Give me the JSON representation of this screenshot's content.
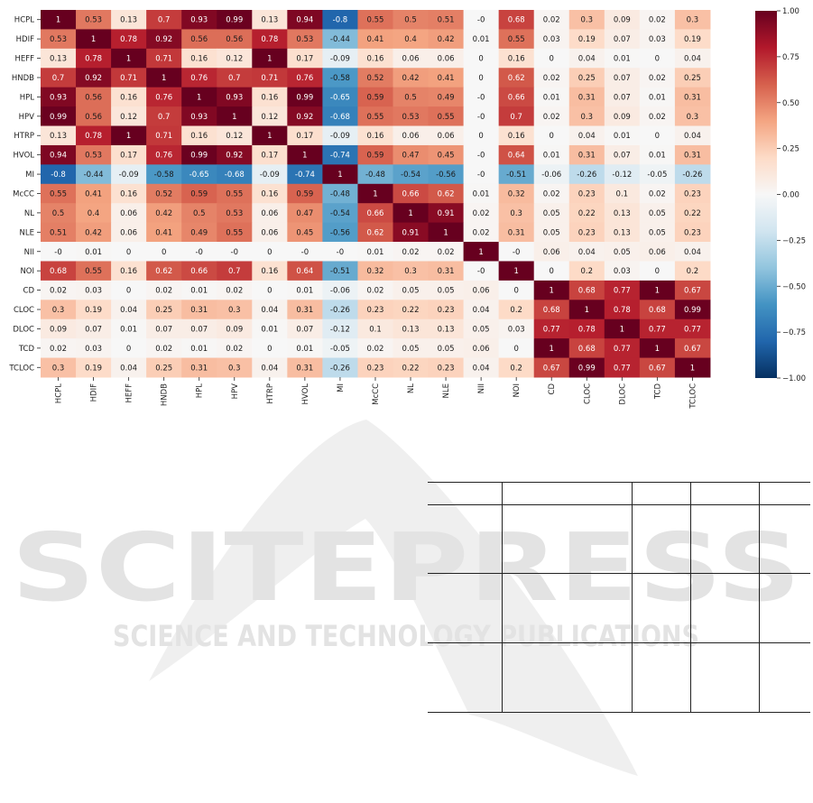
{
  "chart_data": {
    "type": "heatmap",
    "rows": [
      "HCPL",
      "HDIF",
      "HEFF",
      "HNDB",
      "HPL",
      "HPV",
      "HTRP",
      "HVOL",
      "MI",
      "McCC",
      "NL",
      "NLE",
      "NII",
      "NOI",
      "CD",
      "CLOC",
      "DLOC",
      "TCD",
      "TCLOC"
    ],
    "columns": [
      "HCPL",
      "HDIF",
      "HEFF",
      "HNDB",
      "HPL",
      "HPV",
      "HTRP",
      "HVOL",
      "MI",
      "McCC",
      "NL",
      "NLE",
      "NII",
      "NOI",
      "CD",
      "CLOC",
      "DLOC",
      "TCD",
      "TCLOC"
    ],
    "values": [
      [
        "1",
        "0.53",
        "0.13",
        "0.7",
        "0.93",
        "0.99",
        "0.13",
        "0.94",
        "-0.8",
        "0.55",
        "0.5",
        "0.51",
        "-0",
        "0.68",
        "0.02",
        "0.3",
        "0.09",
        "0.02",
        "0.3"
      ],
      [
        "0.53",
        "1",
        "0.78",
        "0.92",
        "0.56",
        "0.56",
        "0.78",
        "0.53",
        "-0.44",
        "0.41",
        "0.4",
        "0.42",
        "0.01",
        "0.55",
        "0.03",
        "0.19",
        "0.07",
        "0.03",
        "0.19"
      ],
      [
        "0.13",
        "0.78",
        "1",
        "0.71",
        "0.16",
        "0.12",
        "1",
        "0.17",
        "-0.09",
        "0.16",
        "0.06",
        "0.06",
        "0",
        "0.16",
        "0",
        "0.04",
        "0.01",
        "0",
        "0.04"
      ],
      [
        "0.7",
        "0.92",
        "0.71",
        "1",
        "0.76",
        "0.7",
        "0.71",
        "0.76",
        "-0.58",
        "0.52",
        "0.42",
        "0.41",
        "0",
        "0.62",
        "0.02",
        "0.25",
        "0.07",
        "0.02",
        "0.25"
      ],
      [
        "0.93",
        "0.56",
        "0.16",
        "0.76",
        "1",
        "0.93",
        "0.16",
        "0.99",
        "-0.65",
        "0.59",
        "0.5",
        "0.49",
        "-0",
        "0.66",
        "0.01",
        "0.31",
        "0.07",
        "0.01",
        "0.31"
      ],
      [
        "0.99",
        "0.56",
        "0.12",
        "0.7",
        "0.93",
        "1",
        "0.12",
        "0.92",
        "-0.68",
        "0.55",
        "0.53",
        "0.55",
        "-0",
        "0.7",
        "0.02",
        "0.3",
        "0.09",
        "0.02",
        "0.3"
      ],
      [
        "0.13",
        "0.78",
        "1",
        "0.71",
        "0.16",
        "0.12",
        "1",
        "0.17",
        "-0.09",
        "0.16",
        "0.06",
        "0.06",
        "0",
        "0.16",
        "0",
        "0.04",
        "0.01",
        "0",
        "0.04"
      ],
      [
        "0.94",
        "0.53",
        "0.17",
        "0.76",
        "0.99",
        "0.92",
        "0.17",
        "1",
        "-0.74",
        "0.59",
        "0.47",
        "0.45",
        "-0",
        "0.64",
        "0.01",
        "0.31",
        "0.07",
        "0.01",
        "0.31"
      ],
      [
        "-0.8",
        "-0.44",
        "-0.09",
        "-0.58",
        "-0.65",
        "-0.68",
        "-0.09",
        "-0.74",
        "1",
        "-0.48",
        "-0.54",
        "-0.56",
        "-0",
        "-0.51",
        "-0.06",
        "-0.26",
        "-0.12",
        "-0.05",
        "-0.26"
      ],
      [
        "0.55",
        "0.41",
        "0.16",
        "0.52",
        "0.59",
        "0.55",
        "0.16",
        "0.59",
        "-0.48",
        "1",
        "0.66",
        "0.62",
        "0.01",
        "0.32",
        "0.02",
        "0.23",
        "0.1",
        "0.02",
        "0.23"
      ],
      [
        "0.5",
        "0.4",
        "0.06",
        "0.42",
        "0.5",
        "0.53",
        "0.06",
        "0.47",
        "-0.54",
        "0.66",
        "1",
        "0.91",
        "0.02",
        "0.3",
        "0.05",
        "0.22",
        "0.13",
        "0.05",
        "0.22"
      ],
      [
        "0.51",
        "0.42",
        "0.06",
        "0.41",
        "0.49",
        "0.55",
        "0.06",
        "0.45",
        "-0.56",
        "0.62",
        "0.91",
        "1",
        "0.02",
        "0.31",
        "0.05",
        "0.23",
        "0.13",
        "0.05",
        "0.23"
      ],
      [
        "-0",
        "0.01",
        "0",
        "0",
        "-0",
        "-0",
        "0",
        "-0",
        "-0",
        "0.01",
        "0.02",
        "0.02",
        "1",
        "-0",
        "0.06",
        "0.04",
        "0.05",
        "0.06",
        "0.04"
      ],
      [
        "0.68",
        "0.55",
        "0.16",
        "0.62",
        "0.66",
        "0.7",
        "0.16",
        "0.64",
        "-0.51",
        "0.32",
        "0.3",
        "0.31",
        "-0",
        "1",
        "0",
        "0.2",
        "0.03",
        "0",
        "0.2"
      ],
      [
        "0.02",
        "0.03",
        "0",
        "0.02",
        "0.01",
        "0.02",
        "0",
        "0.01",
        "-0.06",
        "0.02",
        "0.05",
        "0.05",
        "0.06",
        "0",
        "1",
        "0.68",
        "0.77",
        "1",
        "0.67"
      ],
      [
        "0.3",
        "0.19",
        "0.04",
        "0.25",
        "0.31",
        "0.3",
        "0.04",
        "0.31",
        "-0.26",
        "0.23",
        "0.22",
        "0.23",
        "0.04",
        "0.2",
        "0.68",
        "1",
        "0.78",
        "0.68",
        "0.99"
      ],
      [
        "0.09",
        "0.07",
        "0.01",
        "0.07",
        "0.07",
        "0.09",
        "0.01",
        "0.07",
        "-0.12",
        "0.1",
        "0.13",
        "0.13",
        "0.05",
        "0.03",
        "0.77",
        "0.78",
        "1",
        "0.77",
        "0.77"
      ],
      [
        "0.02",
        "0.03",
        "0",
        "0.02",
        "0.01",
        "0.02",
        "0",
        "0.01",
        "-0.05",
        "0.02",
        "0.05",
        "0.05",
        "0.06",
        "0",
        "1",
        "0.68",
        "0.77",
        "1",
        "0.67"
      ],
      [
        "0.3",
        "0.19",
        "0.04",
        "0.25",
        "0.31",
        "0.3",
        "0.04",
        "0.31",
        "-0.26",
        "0.23",
        "0.22",
        "0.23",
        "0.04",
        "0.2",
        "0.67",
        "0.99",
        "0.77",
        "0.67",
        "1"
      ]
    ],
    "colorbar": {
      "range": [
        -1.0,
        1.0
      ],
      "ticks": [
        "1.00",
        "0.75",
        "0.50",
        "0.25",
        "0.00",
        "−0.25",
        "−0.50",
        "−0.75",
        "−1.00"
      ],
      "colormap": "RdBu_r",
      "color_high": "#67001f",
      "color_mid": "#f7f7f7",
      "color_low": "#053061"
    }
  },
  "watermark": {
    "line1": "SCITEPRESS",
    "line2": "SCIENCE AND TECHNOLOGY PUBLICATIONS",
    "color": "#e6e6e6"
  }
}
